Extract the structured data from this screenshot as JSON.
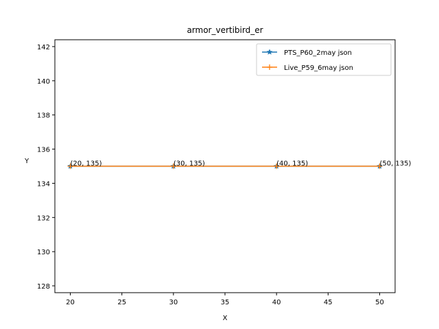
{
  "chart_data": {
    "type": "line",
    "title": "armor_vertibird_er",
    "xlabel": "X",
    "ylabel": "Y",
    "xlim": [
      18.5,
      51.5
    ],
    "ylim": [
      127.6,
      142.4
    ],
    "xticks": [
      20,
      25,
      30,
      35,
      40,
      45,
      50
    ],
    "yticks": [
      128,
      130,
      132,
      134,
      136,
      138,
      140,
      142
    ],
    "grid": false,
    "legend_position": "upper right",
    "series": [
      {
        "name": "PTS_P60_2may json",
        "x": [
          20,
          30,
          40,
          50
        ],
        "y": [
          135,
          135,
          135,
          135
        ],
        "color": "#1f77b4",
        "marker": "star"
      },
      {
        "name": "Live_P59_6may json",
        "x": [
          20,
          30,
          40,
          50
        ],
        "y": [
          135,
          135,
          135,
          135
        ],
        "color": "#ff7f0e",
        "marker": "plus"
      }
    ],
    "annotations": [
      {
        "x": 20,
        "y": 135,
        "text": "(20, 135)"
      },
      {
        "x": 30,
        "y": 135,
        "text": "(30, 135)"
      },
      {
        "x": 40,
        "y": 135,
        "text": "(40, 135)"
      },
      {
        "x": 50,
        "y": 135,
        "text": "(50, 135)"
      }
    ]
  }
}
